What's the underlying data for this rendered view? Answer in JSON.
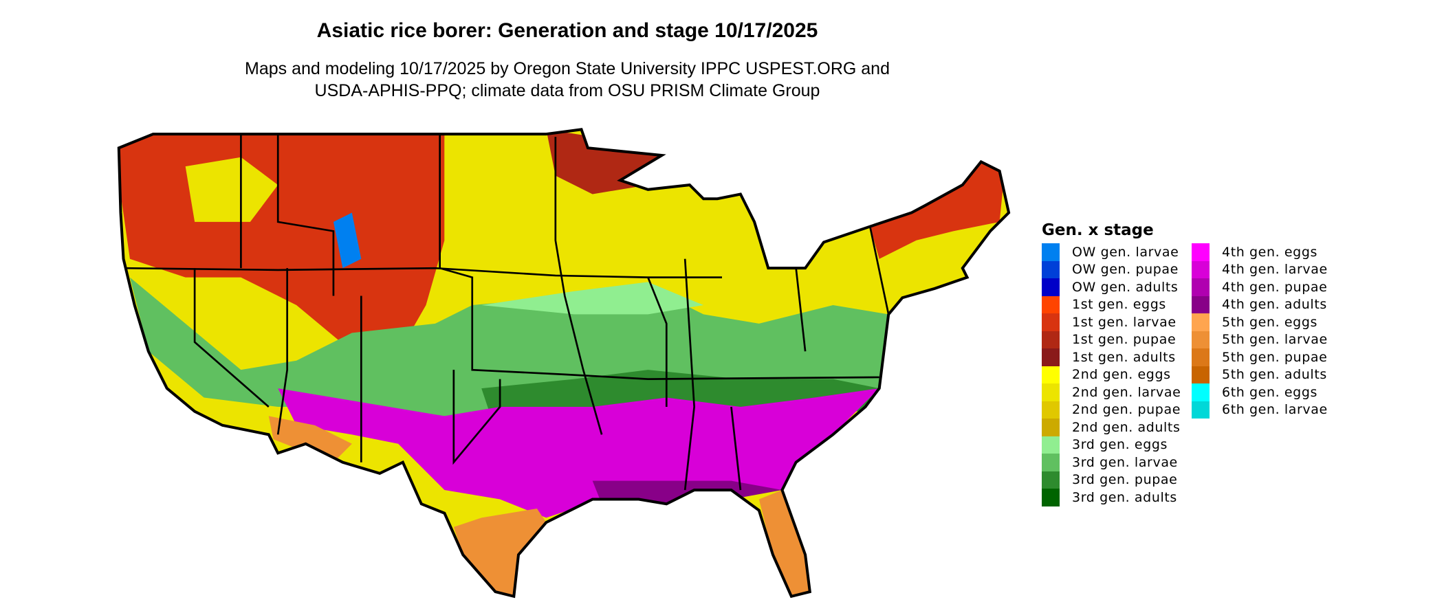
{
  "title": "Asiatic rice borer: Generation and stage 10/17/2025",
  "subtitle_line1": "Maps and modeling 10/17/2025 by Oregon State University IPPC USPEST.ORG and",
  "subtitle_line2": "USDA-APHIS-PPQ; climate data from OSU PRISM Climate Group",
  "legend": {
    "title": "Gen. x stage",
    "column1": [
      {
        "label": "OW gen. larvae",
        "color": "#0080f0"
      },
      {
        "label": "OW gen. pupae",
        "color": "#0040d8"
      },
      {
        "label": "OW gen. adults",
        "color": "#0000c8"
      },
      {
        "label": "1st gen. eggs",
        "color": "#ff4400"
      },
      {
        "label": "1st gen. larvae",
        "color": "#d83410"
      },
      {
        "label": "1st gen. pupae",
        "color": "#b02814"
      },
      {
        "label": "1st gen. adults",
        "color": "#8a1a1a"
      },
      {
        "label": "2nd gen. eggs",
        "color": "#ffff00"
      },
      {
        "label": "2nd gen. larvae",
        "color": "#ece400"
      },
      {
        "label": "2nd gen. pupae",
        "color": "#e0c800"
      },
      {
        "label": "2nd gen. adults",
        "color": "#ccaa00"
      },
      {
        "label": "3rd gen. eggs",
        "color": "#90ee90"
      },
      {
        "label": "3rd gen. larvae",
        "color": "#60c060"
      },
      {
        "label": "3rd gen. pupae",
        "color": "#2e8b2e"
      },
      {
        "label": "3rd gen. adults",
        "color": "#006400"
      }
    ],
    "column2": [
      {
        "label": "4th gen. eggs",
        "color": "#ff00ff"
      },
      {
        "label": "4th gen. larvae",
        "color": "#d800d8"
      },
      {
        "label": "4th gen. pupae",
        "color": "#b000b0"
      },
      {
        "label": "4th gen. adults",
        "color": "#880088"
      },
      {
        "label": "5th gen. eggs",
        "color": "#ffa54f"
      },
      {
        "label": "5th gen. larvae",
        "color": "#ee9035"
      },
      {
        "label": "5th gen. pupae",
        "color": "#dc7818"
      },
      {
        "label": "5th gen. adults",
        "color": "#c86400"
      },
      {
        "label": "6th gen. eggs",
        "color": "#00ffff"
      },
      {
        "label": "6th gen. larvae",
        "color": "#00d8d8"
      }
    ]
  }
}
